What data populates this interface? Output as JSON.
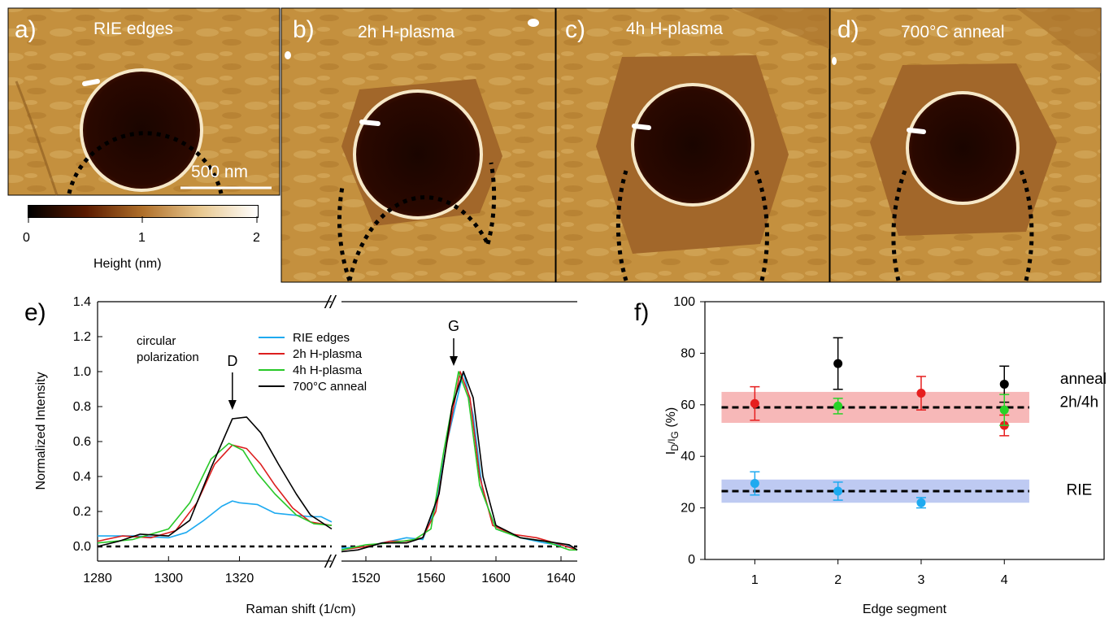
{
  "afm_panels": [
    {
      "letter": "a)",
      "title": "RIE edges"
    },
    {
      "letter": "b)",
      "title": "2h H-plasma"
    },
    {
      "letter": "c)",
      "title": "4h H-plasma"
    },
    {
      "letter": "d)",
      "title": "700°C anneal"
    }
  ],
  "scale_bar": "500 nm",
  "colorbar": {
    "ticks": [
      "0",
      "1",
      "2"
    ],
    "label": "Height (nm)",
    "colors": [
      "#000000",
      "#5a1a00",
      "#b0702a",
      "#e8c890",
      "#ffffff"
    ]
  },
  "chart_data": [
    {
      "panel": "e)",
      "type": "line",
      "xlabel": "Raman shift (1/cm)",
      "ylabel": "Normalized Intensity",
      "ylim": [
        0,
        1.4
      ],
      "yticks": [
        "0.0",
        "0.2",
        "0.4",
        "0.6",
        "0.8",
        "1.0",
        "1.2",
        "1.4"
      ],
      "x_ranges": [
        [
          1280,
          1346
        ],
        [
          1505,
          1650
        ]
      ],
      "xticks_left": [
        "1280",
        "1300",
        "1320"
      ],
      "xticks_right": [
        "1520",
        "1560",
        "1600",
        "1640"
      ],
      "annotation": "circular\npolarization",
      "peaks": [
        {
          "label": "D",
          "x": 1318
        },
        {
          "label": "G",
          "x": 1580
        }
      ],
      "series": [
        {
          "name": "RIE edges",
          "color": "#1eaaf0",
          "left": [
            [
              1280,
              0.06
            ],
            [
              1290,
              0.06
            ],
            [
              1300,
              0.05
            ],
            [
              1305,
              0.08
            ],
            [
              1310,
              0.15
            ],
            [
              1315,
              0.23
            ],
            [
              1318,
              0.26
            ],
            [
              1320,
              0.25
            ],
            [
              1325,
              0.24
            ],
            [
              1330,
              0.19
            ],
            [
              1335,
              0.18
            ],
            [
              1340,
              0.17
            ],
            [
              1343,
              0.17
            ],
            [
              1346,
              0.14
            ]
          ],
          "right": [
            [
              1505,
              -0.01
            ],
            [
              1520,
              0.0
            ],
            [
              1530,
              0.02
            ],
            [
              1545,
              0.05
            ],
            [
              1555,
              0.04
            ],
            [
              1562,
              0.2
            ],
            [
              1570,
              0.6
            ],
            [
              1580,
              1.0
            ],
            [
              1586,
              0.75
            ],
            [
              1592,
              0.3
            ],
            [
              1600,
              0.1
            ],
            [
              1615,
              0.05
            ],
            [
              1630,
              0.02
            ],
            [
              1645,
              0.0
            ],
            [
              1650,
              -0.02
            ]
          ]
        },
        {
          "name": "2h H-plasma",
          "color": "#dc1e1e",
          "left": [
            [
              1280,
              0.03
            ],
            [
              1287,
              0.06
            ],
            [
              1295,
              0.05
            ],
            [
              1302,
              0.09
            ],
            [
              1308,
              0.25
            ],
            [
              1313,
              0.47
            ],
            [
              1318,
              0.58
            ],
            [
              1322,
              0.56
            ],
            [
              1326,
              0.47
            ],
            [
              1330,
              0.35
            ],
            [
              1335,
              0.22
            ],
            [
              1340,
              0.14
            ],
            [
              1346,
              0.12
            ]
          ],
          "right": [
            [
              1505,
              -0.02
            ],
            [
              1520,
              0.0
            ],
            [
              1535,
              0.03
            ],
            [
              1545,
              0.03
            ],
            [
              1555,
              0.05
            ],
            [
              1563,
              0.2
            ],
            [
              1570,
              0.6
            ],
            [
              1578,
              1.0
            ],
            [
              1584,
              0.85
            ],
            [
              1590,
              0.4
            ],
            [
              1598,
              0.12
            ],
            [
              1610,
              0.07
            ],
            [
              1625,
              0.05
            ],
            [
              1640,
              0.01
            ],
            [
              1650,
              -0.02
            ]
          ]
        },
        {
          "name": "4h H-plasma",
          "color": "#28c828",
          "left": [
            [
              1280,
              0.02
            ],
            [
              1290,
              0.04
            ],
            [
              1300,
              0.1
            ],
            [
              1306,
              0.25
            ],
            [
              1312,
              0.5
            ],
            [
              1317,
              0.59
            ],
            [
              1321,
              0.55
            ],
            [
              1325,
              0.42
            ],
            [
              1330,
              0.3
            ],
            [
              1336,
              0.18
            ],
            [
              1341,
              0.13
            ],
            [
              1346,
              0.12
            ]
          ],
          "right": [
            [
              1505,
              -0.02
            ],
            [
              1520,
              0.01
            ],
            [
              1535,
              0.02
            ],
            [
              1550,
              0.04
            ],
            [
              1560,
              0.1
            ],
            [
              1568,
              0.55
            ],
            [
              1577,
              1.0
            ],
            [
              1583,
              0.85
            ],
            [
              1590,
              0.35
            ],
            [
              1600,
              0.1
            ],
            [
              1615,
              0.05
            ],
            [
              1630,
              0.03
            ],
            [
              1645,
              -0.02
            ],
            [
              1650,
              -0.02
            ]
          ]
        },
        {
          "name": "700°C anneal",
          "color": "#000000",
          "left": [
            [
              1280,
              0.0
            ],
            [
              1286,
              0.03
            ],
            [
              1292,
              0.07
            ],
            [
              1300,
              0.06
            ],
            [
              1306,
              0.15
            ],
            [
              1312,
              0.45
            ],
            [
              1318,
              0.73
            ],
            [
              1322,
              0.74
            ],
            [
              1326,
              0.65
            ],
            [
              1331,
              0.47
            ],
            [
              1336,
              0.3
            ],
            [
              1340,
              0.18
            ],
            [
              1346,
              0.1
            ]
          ],
          "right": [
            [
              1505,
              -0.03
            ],
            [
              1515,
              -0.02
            ],
            [
              1530,
              0.02
            ],
            [
              1545,
              0.02
            ],
            [
              1555,
              0.05
            ],
            [
              1565,
              0.3
            ],
            [
              1573,
              0.8
            ],
            [
              1580,
              1.0
            ],
            [
              1586,
              0.85
            ],
            [
              1592,
              0.4
            ],
            [
              1600,
              0.12
            ],
            [
              1615,
              0.05
            ],
            [
              1630,
              0.03
            ],
            [
              1645,
              0.01
            ],
            [
              1650,
              -0.02
            ]
          ]
        }
      ]
    },
    {
      "panel": "f)",
      "type": "scatter",
      "xlabel": "Edge segment",
      "ylabel": "I_D/I_G (%)",
      "xticks": [
        "1",
        "2",
        "3",
        "4"
      ],
      "xlim": [
        0.4,
        5.2
      ],
      "ylim": [
        0,
        100
      ],
      "yticks": [
        "0",
        "20",
        "40",
        "60",
        "80",
        "100"
      ],
      "bands": [
        {
          "label": "2h/4h",
          "mean": 59,
          "low": 53,
          "high": 65,
          "color": "#f4a0a0"
        },
        {
          "label": "RIE",
          "mean": 26.5,
          "low": 22,
          "high": 31,
          "color": "#a8b8ee"
        }
      ],
      "series_label_anneal": "anneal",
      "series": [
        {
          "color": "#000000",
          "points": [
            [
              2,
              76,
              10
            ],
            [
              4,
              68,
              7
            ]
          ]
        },
        {
          "color": "#e61e1e",
          "points": [
            [
              1,
              60.5,
              6.5
            ],
            [
              3,
              64.5,
              6.5
            ],
            [
              4,
              52,
              4
            ]
          ]
        },
        {
          "color": "#28d228",
          "points": [
            [
              2,
              59.5,
              3
            ],
            [
              4,
              58,
              6
            ]
          ]
        },
        {
          "color": "#1eaaf0",
          "points": [
            [
              1,
              29.5,
              4.5
            ],
            [
              2,
              26.5,
              3.5
            ],
            [
              3,
              22,
              2
            ]
          ]
        }
      ]
    }
  ]
}
